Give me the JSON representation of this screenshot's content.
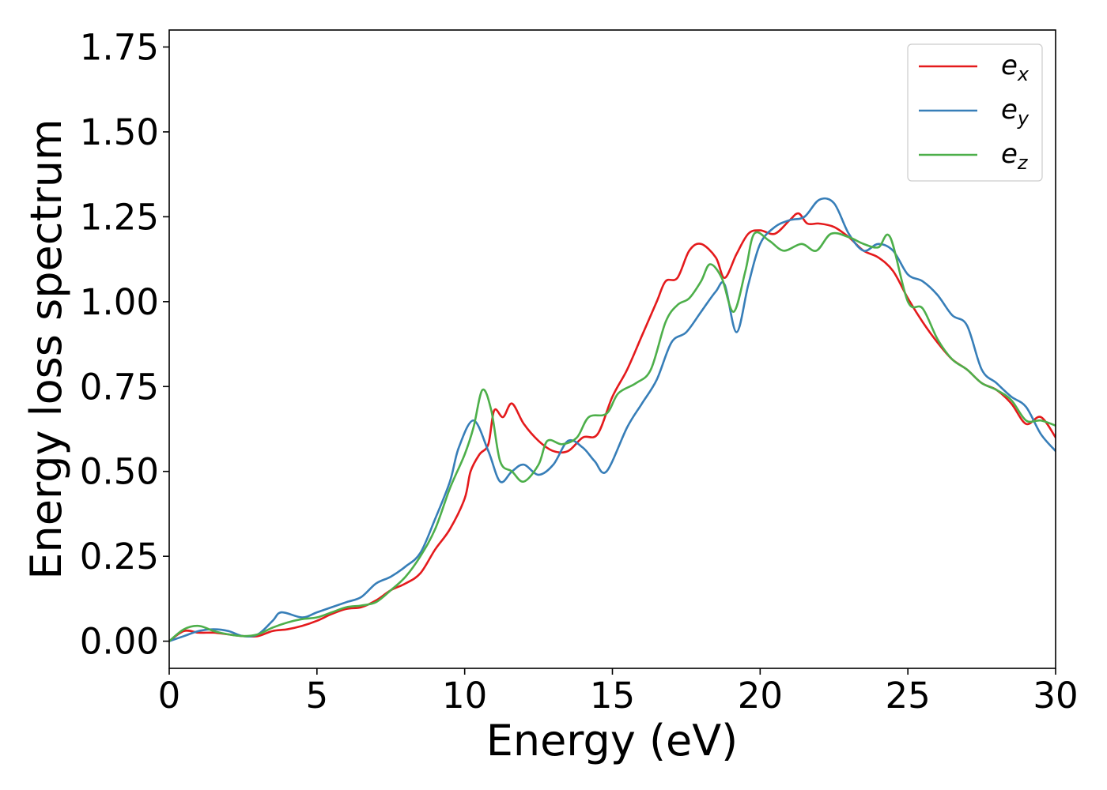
{
  "chart_data": {
    "type": "line",
    "xlabel": "Energy (eV)",
    "ylabel": "Energy loss spectrum",
    "xlim": [
      0,
      30
    ],
    "ylim": [
      -0.08,
      1.8
    ],
    "x_ticks": [
      0,
      5,
      10,
      15,
      20,
      25,
      30
    ],
    "x_tick_labels": [
      "0",
      "5",
      "10",
      "15",
      "20",
      "25",
      "30"
    ],
    "y_ticks": [
      0,
      0.25,
      0.5,
      0.75,
      1.0,
      1.25,
      1.5,
      1.75
    ],
    "y_tick_labels": [
      "0.00",
      "0.25",
      "0.50",
      "0.75",
      "1.00",
      "1.25",
      "1.50",
      "1.75"
    ],
    "grid": false,
    "legend_position": "top-right",
    "series": [
      {
        "name": "e_x",
        "label_base": "e",
        "label_sub": "x",
        "color": "#e41a1c",
        "points": [
          [
            0,
            0
          ],
          [
            0.5,
            0.03
          ],
          [
            1,
            0.025
          ],
          [
            1.5,
            0.025
          ],
          [
            2,
            0.02
          ],
          [
            2.5,
            0.015
          ],
          [
            3,
            0.015
          ],
          [
            3.5,
            0.03
          ],
          [
            4,
            0.035
          ],
          [
            4.5,
            0.045
          ],
          [
            5,
            0.06
          ],
          [
            5.5,
            0.08
          ],
          [
            6,
            0.095
          ],
          [
            6.5,
            0.1
          ],
          [
            7,
            0.12
          ],
          [
            7.5,
            0.15
          ],
          [
            8,
            0.17
          ],
          [
            8.5,
            0.2
          ],
          [
            9,
            0.27
          ],
          [
            9.5,
            0.33
          ],
          [
            10,
            0.42
          ],
          [
            10.2,
            0.5
          ],
          [
            10.5,
            0.55
          ],
          [
            10.8,
            0.58
          ],
          [
            11,
            0.68
          ],
          [
            11.3,
            0.66
          ],
          [
            11.6,
            0.7
          ],
          [
            12,
            0.64
          ],
          [
            12.5,
            0.59
          ],
          [
            13,
            0.56
          ],
          [
            13.5,
            0.56
          ],
          [
            14,
            0.6
          ],
          [
            14.5,
            0.61
          ],
          [
            15,
            0.72
          ],
          [
            15.5,
            0.8
          ],
          [
            16,
            0.9
          ],
          [
            16.5,
            1.0
          ],
          [
            16.8,
            1.06
          ],
          [
            17.2,
            1.07
          ],
          [
            17.6,
            1.15
          ],
          [
            18,
            1.17
          ],
          [
            18.5,
            1.13
          ],
          [
            18.8,
            1.07
          ],
          [
            19.2,
            1.14
          ],
          [
            19.6,
            1.2
          ],
          [
            20,
            1.21
          ],
          [
            20.5,
            1.2
          ],
          [
            21,
            1.24
          ],
          [
            21.3,
            1.26
          ],
          [
            21.6,
            1.23
          ],
          [
            22,
            1.23
          ],
          [
            22.5,
            1.22
          ],
          [
            23,
            1.19
          ],
          [
            23.5,
            1.15
          ],
          [
            24,
            1.13
          ],
          [
            24.5,
            1.09
          ],
          [
            25,
            1.01
          ],
          [
            25.5,
            0.94
          ],
          [
            26,
            0.88
          ],
          [
            26.5,
            0.83
          ],
          [
            27,
            0.8
          ],
          [
            27.5,
            0.76
          ],
          [
            28,
            0.74
          ],
          [
            28.5,
            0.7
          ],
          [
            29,
            0.64
          ],
          [
            29.5,
            0.66
          ],
          [
            30,
            0.6
          ]
        ]
      },
      {
        "name": "e_y",
        "label_base": "e",
        "label_sub": "y",
        "color": "#377eb8",
        "points": [
          [
            0,
            0
          ],
          [
            0.5,
            0.015
          ],
          [
            1,
            0.03
          ],
          [
            1.5,
            0.035
          ],
          [
            2,
            0.03
          ],
          [
            2.5,
            0.015
          ],
          [
            3,
            0.02
          ],
          [
            3.5,
            0.06
          ],
          [
            3.8,
            0.085
          ],
          [
            4.5,
            0.07
          ],
          [
            5,
            0.085
          ],
          [
            5.5,
            0.1
          ],
          [
            6,
            0.115
          ],
          [
            6.5,
            0.13
          ],
          [
            7,
            0.17
          ],
          [
            7.5,
            0.19
          ],
          [
            8,
            0.22
          ],
          [
            8.5,
            0.26
          ],
          [
            9,
            0.36
          ],
          [
            9.5,
            0.47
          ],
          [
            9.8,
            0.57
          ],
          [
            10.3,
            0.65
          ],
          [
            10.8,
            0.56
          ],
          [
            11.2,
            0.47
          ],
          [
            11.6,
            0.5
          ],
          [
            12,
            0.52
          ],
          [
            12.5,
            0.49
          ],
          [
            13,
            0.52
          ],
          [
            13.5,
            0.59
          ],
          [
            14,
            0.57
          ],
          [
            14.4,
            0.53
          ],
          [
            14.8,
            0.5
          ],
          [
            15.5,
            0.63
          ],
          [
            16,
            0.7
          ],
          [
            16.5,
            0.77
          ],
          [
            17,
            0.88
          ],
          [
            17.5,
            0.91
          ],
          [
            18,
            0.97
          ],
          [
            18.5,
            1.03
          ],
          [
            18.8,
            1.05
          ],
          [
            19.2,
            0.91
          ],
          [
            19.6,
            1.05
          ],
          [
            20,
            1.17
          ],
          [
            20.5,
            1.22
          ],
          [
            21,
            1.24
          ],
          [
            21.5,
            1.25
          ],
          [
            22,
            1.3
          ],
          [
            22.5,
            1.29
          ],
          [
            23,
            1.2
          ],
          [
            23.5,
            1.15
          ],
          [
            24,
            1.17
          ],
          [
            24.5,
            1.15
          ],
          [
            25,
            1.08
          ],
          [
            25.5,
            1.06
          ],
          [
            26,
            1.02
          ],
          [
            26.5,
            0.96
          ],
          [
            27,
            0.93
          ],
          [
            27.5,
            0.8
          ],
          [
            28,
            0.76
          ],
          [
            28.5,
            0.72
          ],
          [
            29,
            0.69
          ],
          [
            29.5,
            0.61
          ],
          [
            30,
            0.56
          ]
        ]
      },
      {
        "name": "e_z",
        "label_base": "e",
        "label_sub": "z",
        "color": "#4daf4a",
        "points": [
          [
            0,
            0
          ],
          [
            0.5,
            0.035
          ],
          [
            1,
            0.045
          ],
          [
            1.5,
            0.03
          ],
          [
            2,
            0.02
          ],
          [
            2.5,
            0.015
          ],
          [
            3,
            0.02
          ],
          [
            3.5,
            0.04
          ],
          [
            4,
            0.055
          ],
          [
            4.5,
            0.065
          ],
          [
            5,
            0.07
          ],
          [
            5.5,
            0.085
          ],
          [
            6,
            0.1
          ],
          [
            6.5,
            0.105
          ],
          [
            7,
            0.115
          ],
          [
            7.5,
            0.15
          ],
          [
            8,
            0.19
          ],
          [
            8.5,
            0.25
          ],
          [
            9,
            0.33
          ],
          [
            9.5,
            0.45
          ],
          [
            10,
            0.55
          ],
          [
            10.3,
            0.63
          ],
          [
            10.6,
            0.74
          ],
          [
            10.9,
            0.68
          ],
          [
            11.2,
            0.53
          ],
          [
            11.6,
            0.5
          ],
          [
            12,
            0.47
          ],
          [
            12.5,
            0.52
          ],
          [
            12.8,
            0.59
          ],
          [
            13.3,
            0.58
          ],
          [
            13.8,
            0.6
          ],
          [
            14.2,
            0.66
          ],
          [
            14.8,
            0.67
          ],
          [
            15.2,
            0.73
          ],
          [
            15.8,
            0.76
          ],
          [
            16.3,
            0.8
          ],
          [
            16.8,
            0.94
          ],
          [
            17.2,
            0.99
          ],
          [
            17.6,
            1.01
          ],
          [
            18,
            1.06
          ],
          [
            18.3,
            1.11
          ],
          [
            18.7,
            1.07
          ],
          [
            19.1,
            0.97
          ],
          [
            19.5,
            1.09
          ],
          [
            19.8,
            1.2
          ],
          [
            20.3,
            1.18
          ],
          [
            20.8,
            1.15
          ],
          [
            21.4,
            1.17
          ],
          [
            21.9,
            1.15
          ],
          [
            22.4,
            1.2
          ],
          [
            23,
            1.19
          ],
          [
            23.5,
            1.17
          ],
          [
            24,
            1.16
          ],
          [
            24.4,
            1.19
          ],
          [
            25,
            1.0
          ],
          [
            25.5,
            0.98
          ],
          [
            26,
            0.89
          ],
          [
            26.5,
            0.83
          ],
          [
            27,
            0.8
          ],
          [
            27.5,
            0.76
          ],
          [
            28,
            0.74
          ],
          [
            28.5,
            0.71
          ],
          [
            29,
            0.65
          ],
          [
            29.5,
            0.65
          ],
          [
            30,
            0.635
          ]
        ]
      }
    ]
  }
}
